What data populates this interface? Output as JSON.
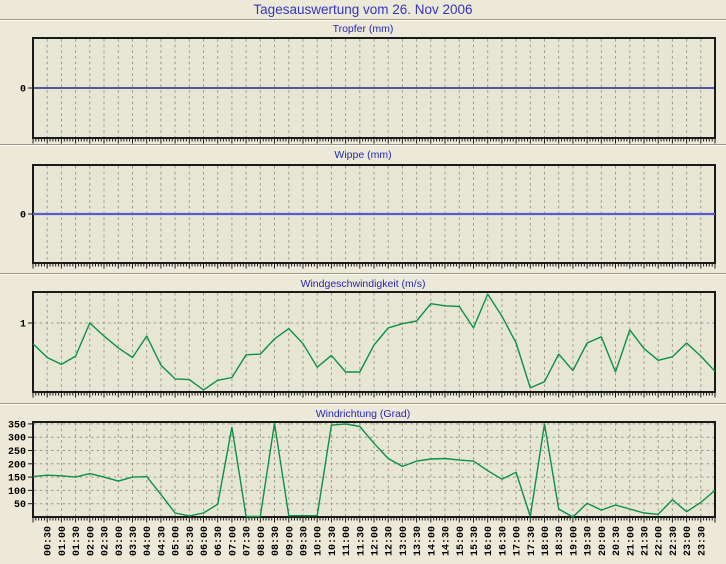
{
  "page": {
    "title": "Tagesauswertung vom 26. Nov 2006",
    "background_color": "#ECE9D8",
    "plot_background_color": "#E7E6D5",
    "title_color": "#3434C0",
    "chart_title_color": "#2626BC",
    "gridline_color": "#9B988B",
    "frame_color": "#1A1A1A"
  },
  "x_axis": {
    "start": "00:00",
    "end": "24:00",
    "step_minutes": 30,
    "labels": [
      "00:30",
      "01:00",
      "01:30",
      "02:00",
      "02:30",
      "03:00",
      "03:30",
      "04:00",
      "04:30",
      "05:00",
      "05:30",
      "06:00",
      "06:30",
      "07:00",
      "07:30",
      "08:00",
      "08:30",
      "09:00",
      "09:30",
      "10:00",
      "10:30",
      "11:00",
      "11:30",
      "12:00",
      "12:30",
      "13:00",
      "13:30",
      "14:00",
      "14:30",
      "15:00",
      "15:30",
      "16:00",
      "16:30",
      "17:00",
      "17:30",
      "18:00",
      "18:30",
      "19:00",
      "19:30",
      "20:00",
      "20:30",
      "21:00",
      "21:30",
      "22:00",
      "22:30",
      "23:00",
      "23:30"
    ]
  },
  "chart_data": [
    {
      "id": "tropfer",
      "type": "line",
      "title": "Tropfer (mm)",
      "ylim": [
        -1,
        1
      ],
      "yticks": [
        {
          "value": 0,
          "label": "0",
          "gridline": false
        }
      ],
      "line_color": "#00007E",
      "line_width": 1.2,
      "grid": true,
      "values": [
        0,
        0,
        0,
        0,
        0,
        0,
        0,
        0,
        0,
        0,
        0,
        0,
        0,
        0,
        0,
        0,
        0,
        0,
        0,
        0,
        0,
        0,
        0,
        0,
        0,
        0,
        0,
        0,
        0,
        0,
        0,
        0,
        0,
        0,
        0,
        0,
        0,
        0,
        0,
        0,
        0,
        0,
        0,
        0,
        0,
        0,
        0,
        0,
        0
      ]
    },
    {
      "id": "wippe",
      "type": "line",
      "title": "Wippe (mm)",
      "ylim": [
        -1,
        1
      ],
      "yticks": [
        {
          "value": 0,
          "label": "0",
          "gridline": false
        }
      ],
      "line_color": "#5A5ACC",
      "line_width": 2.2,
      "grid": true,
      "values": [
        0,
        0,
        0,
        0,
        0,
        0,
        0,
        0,
        0,
        0,
        0,
        0,
        0,
        0,
        0,
        0,
        0,
        0,
        0,
        0,
        0,
        0,
        0,
        0,
        0,
        0,
        0,
        0,
        0,
        0,
        0,
        0,
        0,
        0,
        0,
        0,
        0,
        0,
        0,
        0,
        0,
        0,
        0,
        0,
        0,
        0,
        0,
        0,
        0
      ]
    },
    {
      "id": "windgeschwindigkeit",
      "type": "line",
      "title": "Windgeschwindigkeit (m/s)",
      "ylim": [
        0,
        1.45
      ],
      "yticks": [
        {
          "value": 1,
          "label": "1",
          "gridline": true
        }
      ],
      "line_color": "#0B9145",
      "line_width": 1.4,
      "grid": true,
      "values": [
        0.7,
        0.5,
        0.4,
        0.52,
        1.0,
        0.81,
        0.64,
        0.5,
        0.81,
        0.39,
        0.19,
        0.18,
        0.03,
        0.17,
        0.21,
        0.54,
        0.55,
        0.77,
        0.92,
        0.7,
        0.36,
        0.53,
        0.29,
        0.29,
        0.68,
        0.93,
        0.99,
        1.03,
        1.28,
        1.25,
        1.24,
        0.93,
        1.42,
        1.1,
        0.71,
        0.06,
        0.15,
        0.55,
        0.31,
        0.71,
        0.8,
        0.29,
        0.9,
        0.63,
        0.46,
        0.51,
        0.71,
        0.52,
        0.3
      ]
    },
    {
      "id": "windrichtung",
      "type": "line",
      "title": "Windrichtung (Grad)",
      "ylim": [
        0,
        357
      ],
      "yticks": [
        {
          "value": 350,
          "label": "350",
          "gridline": true
        },
        {
          "value": 300,
          "label": "300",
          "gridline": true
        },
        {
          "value": 250,
          "label": "250",
          "gridline": true
        },
        {
          "value": 200,
          "label": "200",
          "gridline": true
        },
        {
          "value": 150,
          "label": "150",
          "gridline": true
        },
        {
          "value": 100,
          "label": "100",
          "gridline": true
        },
        {
          "value": 50,
          "label": "50",
          "gridline": true
        }
      ],
      "line_color": "#0B9145",
      "line_width": 1.4,
      "grid": true,
      "values": [
        152,
        157,
        155,
        150,
        163,
        150,
        135,
        150,
        152,
        85,
        15,
        4,
        15,
        48,
        338,
        2,
        2,
        352,
        5,
        5,
        5,
        345,
        350,
        340,
        277,
        220,
        190,
        210,
        218,
        220,
        214,
        210,
        174,
        142,
        168,
        2,
        350,
        30,
        0,
        52,
        26,
        45,
        30,
        15,
        10,
        65,
        20,
        55,
        100
      ]
    }
  ]
}
